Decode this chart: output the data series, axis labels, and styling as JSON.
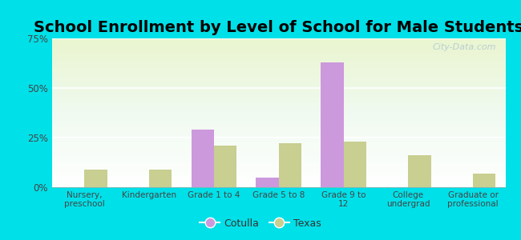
{
  "title": "School Enrollment by Level of School for Male Students",
  "categories": [
    "Nursery,\npreschool",
    "Kindergarten",
    "Grade 1 to 4",
    "Grade 5 to 8",
    "Grade 9 to\n12",
    "College\nundergrad",
    "Graduate or\nprofessional"
  ],
  "cotulla": [
    0,
    0,
    29,
    5,
    63,
    0,
    0
  ],
  "texas": [
    9,
    9,
    21,
    22,
    23,
    16,
    7
  ],
  "cotulla_color": "#cc99dd",
  "texas_color": "#c8cf90",
  "background_color": "#00e0e8",
  "ylim": [
    0,
    75
  ],
  "yticks": [
    0,
    25,
    50,
    75
  ],
  "ytick_labels": [
    "0%",
    "25%",
    "50%",
    "75%"
  ],
  "title_fontsize": 14,
  "legend_labels": [
    "Cotulla",
    "Texas"
  ],
  "bar_width": 0.35,
  "watermark": "City-Data.com"
}
